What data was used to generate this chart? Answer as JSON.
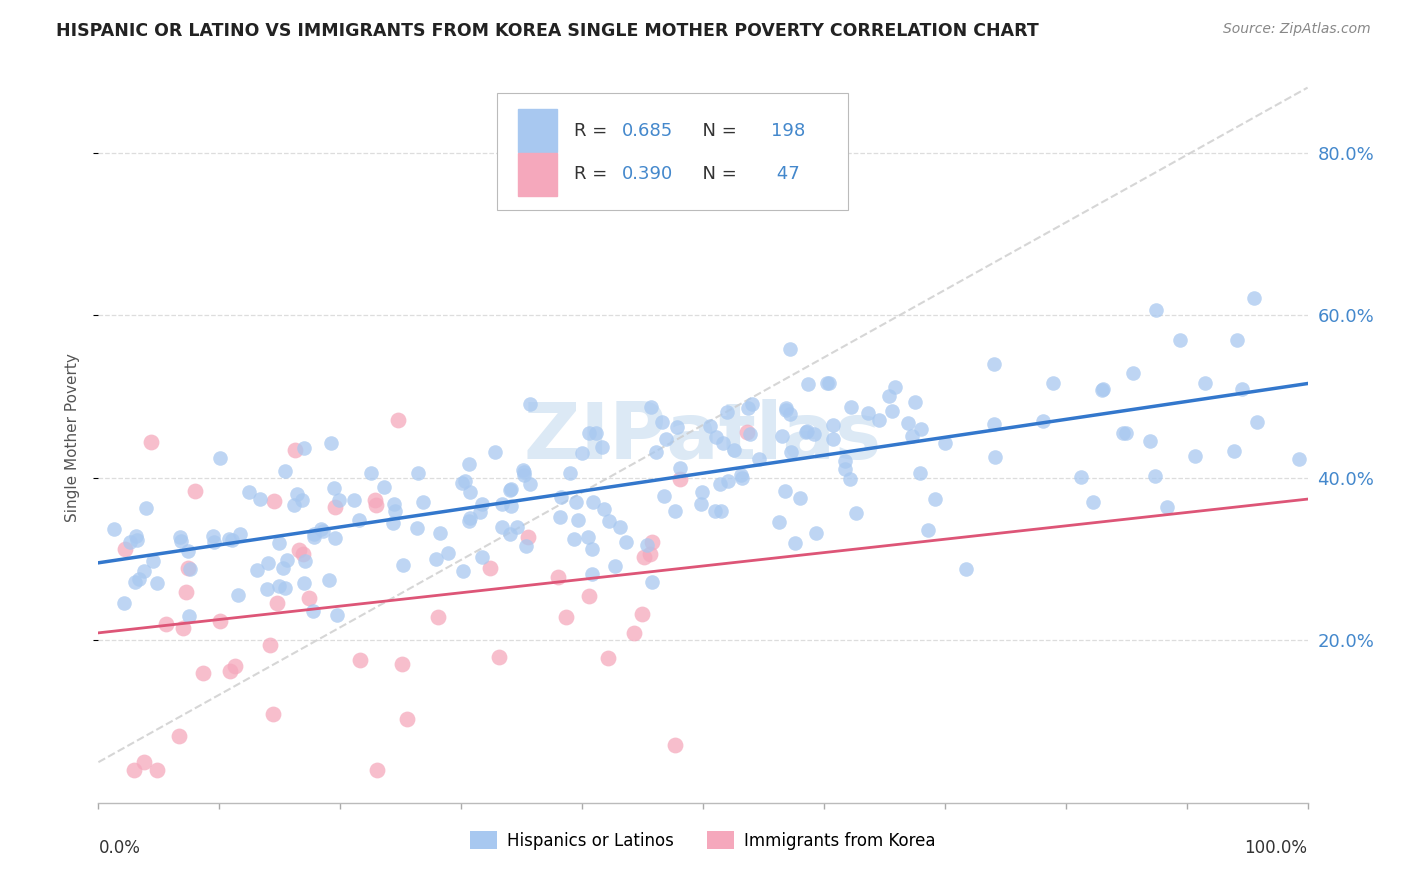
{
  "title": "HISPANIC OR LATINO VS IMMIGRANTS FROM KOREA SINGLE MOTHER POVERTY CORRELATION CHART",
  "source": "Source: ZipAtlas.com",
  "ylabel": "Single Mother Poverty",
  "legend_label_1": "Hispanics or Latinos",
  "legend_label_2": "Immigrants from Korea",
  "R1": 0.685,
  "N1": 198,
  "R2": 0.39,
  "N2": 47,
  "color_blue": "#A8C8F0",
  "color_pink": "#F5A8BC",
  "color_blue_text": "#4488CC",
  "trend_color_blue": "#3377CC",
  "trend_color_pink": "#DD5577",
  "trend_color_dashed": "#CCCCCC",
  "background": "#FFFFFF",
  "ylim": [
    0.0,
    0.9
  ],
  "xlim": [
    0.0,
    1.0
  ],
  "yticks": [
    0.2,
    0.4,
    0.6,
    0.8
  ],
  "ytick_labels": [
    "20.0%",
    "40.0%",
    "60.0%",
    "80.0%"
  ]
}
